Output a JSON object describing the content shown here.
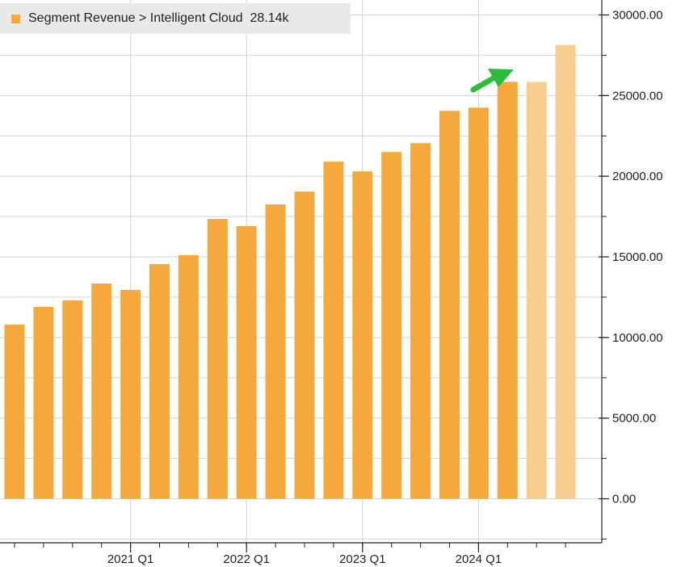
{
  "colors": {
    "bar": "#f5a93c",
    "bar_forecast": "#f8cd90",
    "grid": "#d2d2d2",
    "axis": "#222222",
    "arrow": "#2dbb3c",
    "legend_bg": "#e9e9e9"
  },
  "legend": {
    "label": "Segment Revenue > Intelligent Cloud",
    "value": "28.14k"
  },
  "annotation": {
    "icon": "green-up-arrow-icon"
  },
  "chart_data": {
    "type": "bar",
    "title": "",
    "xlabel": "",
    "ylabel": "",
    "x_tick_labels": [
      "2021 Q1",
      "2022 Q1",
      "2023 Q1",
      "2024 Q1"
    ],
    "y_tick_labels": [
      "0.00",
      "5000.00",
      "10000.00",
      "15000.00",
      "20000.00",
      "25000.00",
      "30000.00"
    ],
    "y_ticks": [
      0,
      5000,
      10000,
      15000,
      20000,
      25000,
      30000
    ],
    "ylim": [
      -2500,
      30500
    ],
    "grid": true,
    "legend_position": "top-left",
    "y_axis_position": "right",
    "series": [
      {
        "name": "Segment Revenue > Intelligent Cloud",
        "values": [
          10800,
          11900,
          12300,
          13350,
          12950,
          14550,
          15100,
          17350,
          16900,
          18250,
          19050,
          20900,
          20300,
          21500,
          22050,
          24050,
          24250,
          25850,
          25850,
          28140
        ],
        "forecast": [
          false,
          false,
          false,
          false,
          false,
          false,
          false,
          false,
          false,
          false,
          false,
          false,
          false,
          false,
          false,
          false,
          false,
          false,
          true,
          true
        ]
      }
    ]
  }
}
